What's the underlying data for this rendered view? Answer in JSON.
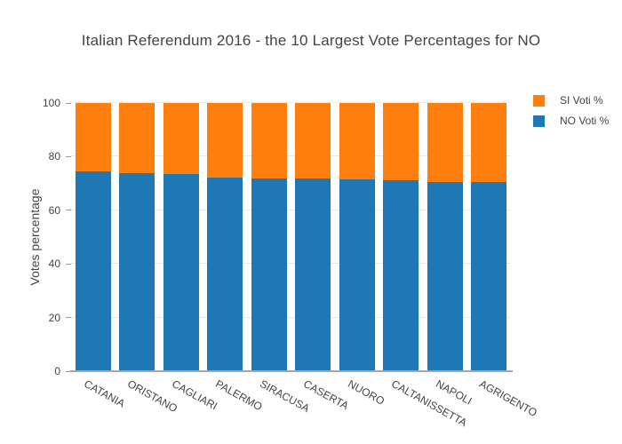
{
  "chart_data": {
    "type": "bar",
    "stacked": true,
    "title": "Italian Referendum 2016 - the 10 Largest Vote Percentages for NO",
    "xlabel": "",
    "ylabel": "Votes percentage",
    "categories": [
      "CATANIA",
      "ORISTANO",
      "CAGLIARI",
      "PALERMO",
      "SIRACUSA",
      "CASERTA",
      "NUORO",
      "CALTANISSETTA",
      "NAPOLI",
      "AGRIGENTO"
    ],
    "series": [
      {
        "key": "no",
        "name": "NO Voti %",
        "color": "#1f77b4",
        "values": [
          74.5,
          73.9,
          73.5,
          72.3,
          72.0,
          71.7,
          71.4,
          71.1,
          70.7,
          70.6
        ]
      },
      {
        "key": "si",
        "name": "SI Voti %",
        "color": "#ff7f0e",
        "values": [
          25.5,
          26.1,
          26.5,
          27.7,
          28.0,
          28.3,
          28.6,
          28.9,
          29.3,
          29.4
        ]
      }
    ],
    "ylim": [
      0,
      100
    ],
    "yticks": [
      0,
      20,
      40,
      60,
      80,
      100
    ],
    "grid": true,
    "legend_position": "top-right"
  },
  "legend": {
    "items": [
      {
        "key": "si",
        "label": "SI Voti %",
        "color": "#ff7f0e"
      },
      {
        "key": "no",
        "label": "NO Voti %",
        "color": "#1f77b4"
      }
    ]
  },
  "colors": {
    "background": "#ffffff",
    "axis_line": "#a6a6a6",
    "grid_line": "#e9e9e9",
    "text": "#444444"
  }
}
